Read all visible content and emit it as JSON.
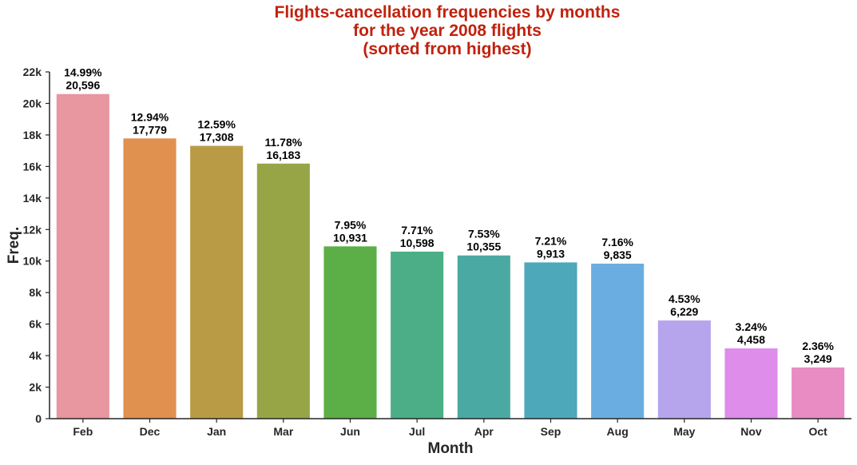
{
  "chart_data": {
    "type": "bar",
    "title": [
      "Flights-cancellation frequencies by months",
      "for the year 2008 flights",
      "(sorted from highest)"
    ],
    "title_color": "#c0220e",
    "xlabel": "Month",
    "ylabel": "Freq.",
    "ylim": [
      0,
      22000
    ],
    "yticks": [
      0,
      2000,
      4000,
      6000,
      8000,
      10000,
      12000,
      14000,
      16000,
      18000,
      20000,
      22000
    ],
    "ytick_labels": [
      "0",
      "2k",
      "4k",
      "6k",
      "8k",
      "10k",
      "12k",
      "14k",
      "16k",
      "18k",
      "20k",
      "22k"
    ],
    "grid": false,
    "categories": [
      "Feb",
      "Dec",
      "Jan",
      "Mar",
      "Jun",
      "Jul",
      "Apr",
      "Sep",
      "Aug",
      "May",
      "Nov",
      "Oct"
    ],
    "values": [
      20596,
      17779,
      17308,
      16183,
      10931,
      10598,
      10355,
      9913,
      9835,
      6229,
      4458,
      3249
    ],
    "percent_labels": [
      "14.99%",
      "12.94%",
      "12.59%",
      "11.78%",
      "7.95%",
      "7.71%",
      "7.53%",
      "7.21%",
      "7.16%",
      "4.53%",
      "3.24%",
      "2.36%"
    ],
    "count_labels": [
      "20,596",
      "17,779",
      "17,308",
      "16,183",
      "10,931",
      "10,598",
      "10,355",
      "9,913",
      "9,835",
      "6,229",
      "4,458",
      "3,249"
    ],
    "colors": [
      "#e8969f",
      "#e0904f",
      "#b99b46",
      "#98a546",
      "#5cae46",
      "#4bae86",
      "#4aaaa3",
      "#4da8ba",
      "#6aaee1",
      "#b6a5ec",
      "#de8dea",
      "#e88cc3"
    ]
  }
}
